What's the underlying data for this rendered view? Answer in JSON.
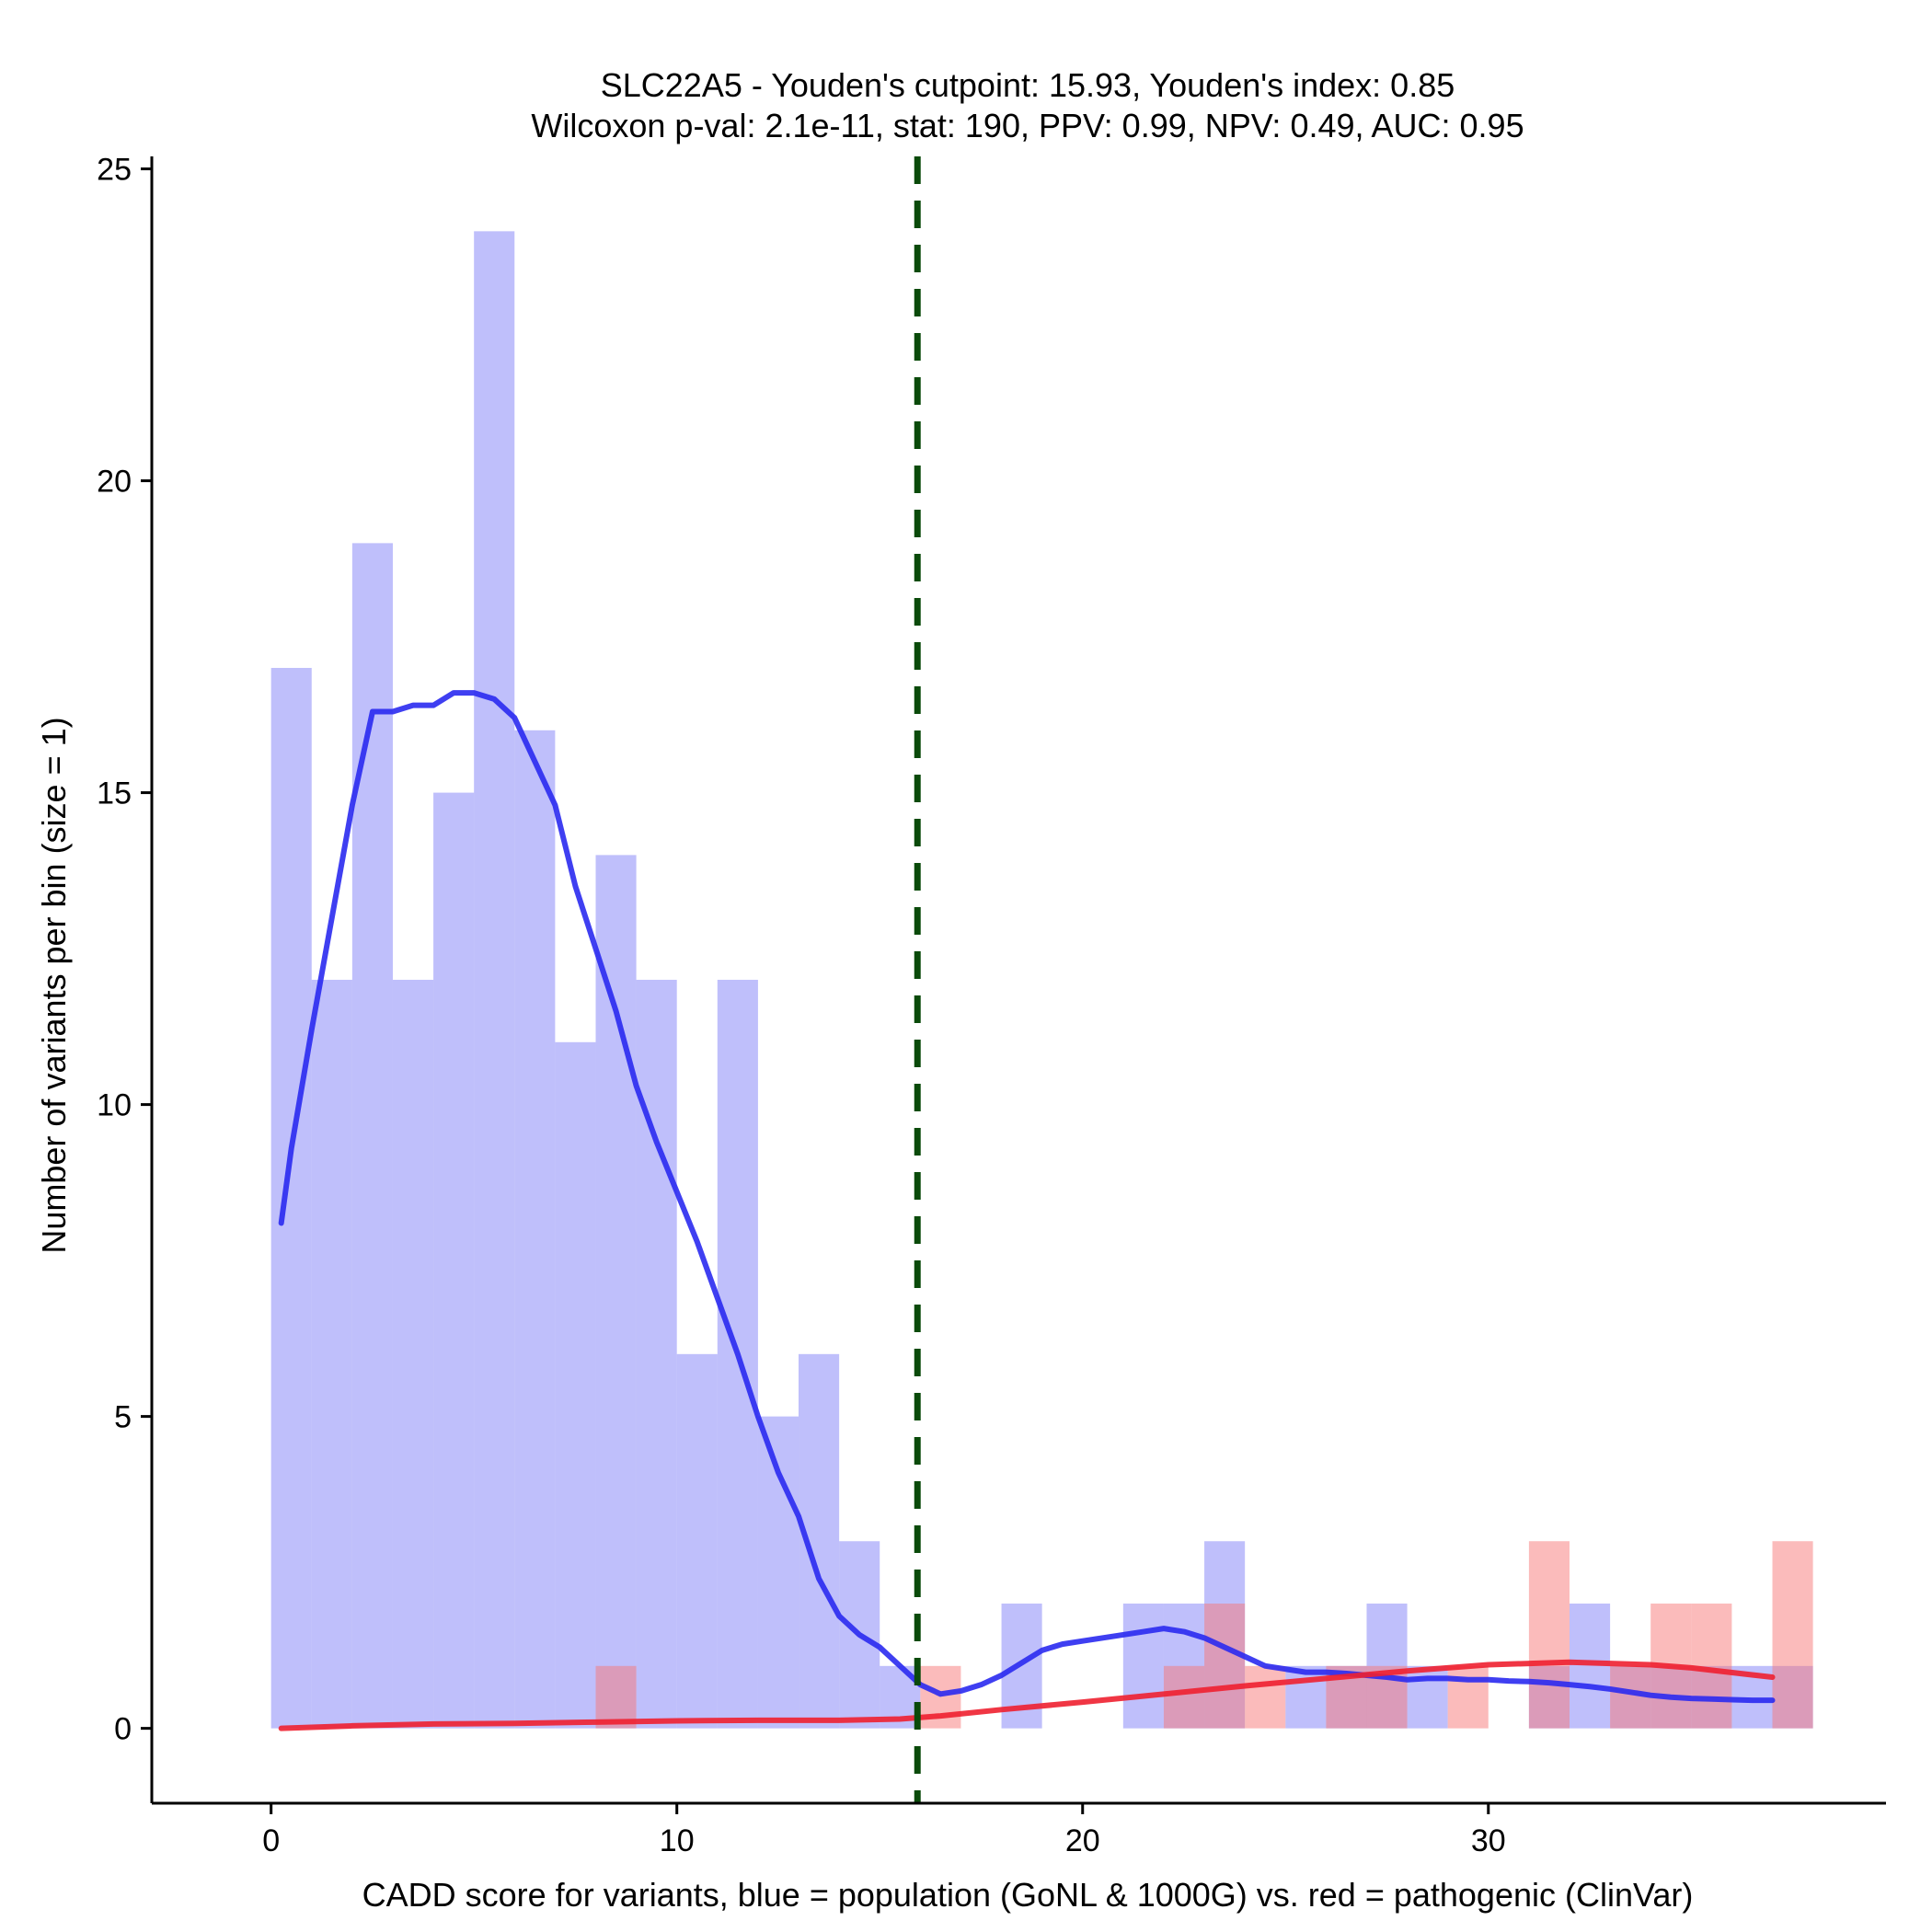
{
  "chart_data": {
    "type": "bar",
    "title": "SLC22A5 - Youden's cutpoint: 15.93, Youden's index: 0.85",
    "subtitle": "Wilcoxon p-val: 2.1e-11, stat: 190, PPV: 0.99, NPV: 0.49, AUC: 0.95",
    "xlabel": "CADD score for variants, blue = population (GoNL & 1000G) vs. red = pathogenic (ClinVar)",
    "ylabel": "Number of variants per bin (size = 1)",
    "xlim": [
      -2.94,
      39.8
    ],
    "ylim": [
      -1.2,
      25.2
    ],
    "x_ticks": [
      0,
      10,
      20,
      30
    ],
    "y_ticks": [
      0,
      5,
      10,
      15,
      20,
      25
    ],
    "grid": false,
    "cutpoint": 15.93,
    "series": [
      {
        "name": "population (GoNL & 1000G)",
        "color": "#8080f8",
        "bin_start": [
          0,
          1,
          2,
          3,
          4,
          5,
          6,
          7,
          8,
          9,
          10,
          11,
          12,
          13,
          14,
          15,
          18,
          21,
          22,
          23,
          25,
          26,
          27,
          28,
          31,
          32,
          33,
          34,
          35,
          36,
          37
        ],
        "counts": [
          17,
          12,
          19,
          12,
          15,
          24,
          16,
          11,
          14,
          12,
          6,
          12,
          5,
          6,
          3,
          1,
          2,
          2,
          2,
          3,
          1,
          1,
          2,
          1,
          1,
          2,
          1,
          1,
          1,
          1,
          1
        ]
      },
      {
        "name": "pathogenic (ClinVar)",
        "color": "#f87878",
        "bin_start": [
          8,
          16,
          22,
          23,
          24,
          26,
          27,
          29,
          31,
          33,
          34,
          35,
          37
        ],
        "counts": [
          1,
          1,
          1,
          2,
          1,
          1,
          1,
          1,
          3,
          1,
          2,
          2,
          3
        ]
      }
    ],
    "density_curves": [
      {
        "name": "population density",
        "color": "#2a2af0",
        "x": [
          0.25,
          0.5,
          1,
          1.5,
          2,
          2.5,
          3,
          3.5,
          4,
          4.5,
          5,
          5.5,
          6,
          6.5,
          7,
          7.5,
          8,
          8.5,
          9,
          9.5,
          10,
          10.5,
          11,
          11.5,
          12,
          12.5,
          13,
          13.5,
          14,
          14.5,
          15,
          15.5,
          16,
          16.5,
          17,
          17.5,
          18,
          18.5,
          19,
          19.5,
          20,
          20.5,
          21,
          21.5,
          22,
          22.5,
          23,
          23.5,
          24,
          24.5,
          25,
          25.5,
          26,
          26.5,
          27,
          27.5,
          28,
          28.5,
          29,
          29.5,
          30,
          30.5,
          31,
          31.5,
          32,
          32.5,
          33,
          33.5,
          34,
          34.5,
          35,
          35.5,
          36,
          36.5,
          37
        ],
        "y": [
          8.1,
          9.3,
          11.2,
          13.0,
          14.8,
          16.3,
          16.3,
          16.4,
          16.4,
          16.6,
          16.6,
          16.5,
          16.2,
          15.5,
          14.8,
          13.5,
          12.5,
          11.5,
          10.3,
          9.4,
          8.6,
          7.8,
          6.9,
          6.0,
          5.0,
          4.1,
          3.4,
          2.4,
          1.8,
          1.5,
          1.3,
          1.0,
          0.7,
          0.55,
          0.6,
          0.7,
          0.85,
          1.05,
          1.25,
          1.35,
          1.4,
          1.45,
          1.5,
          1.55,
          1.6,
          1.55,
          1.45,
          1.3,
          1.15,
          1.0,
          0.95,
          0.9,
          0.9,
          0.88,
          0.85,
          0.82,
          0.78,
          0.8,
          0.8,
          0.78,
          0.78,
          0.76,
          0.75,
          0.73,
          0.7,
          0.67,
          0.63,
          0.58,
          0.53,
          0.5,
          0.48,
          0.47,
          0.46,
          0.45,
          0.45
        ]
      },
      {
        "name": "pathogenic density",
        "color": "#ee2030",
        "x": [
          0.25,
          2,
          4,
          6,
          8,
          10,
          12,
          14,
          15.5,
          16.5,
          18,
          20,
          22,
          24,
          26,
          28,
          30,
          32,
          34,
          35,
          37
        ],
        "y": [
          0.0,
          0.04,
          0.07,
          0.08,
          0.1,
          0.12,
          0.13,
          0.13,
          0.15,
          0.2,
          0.3,
          0.42,
          0.55,
          0.68,
          0.8,
          0.92,
          1.02,
          1.06,
          1.02,
          0.97,
          0.82
        ]
      }
    ]
  }
}
